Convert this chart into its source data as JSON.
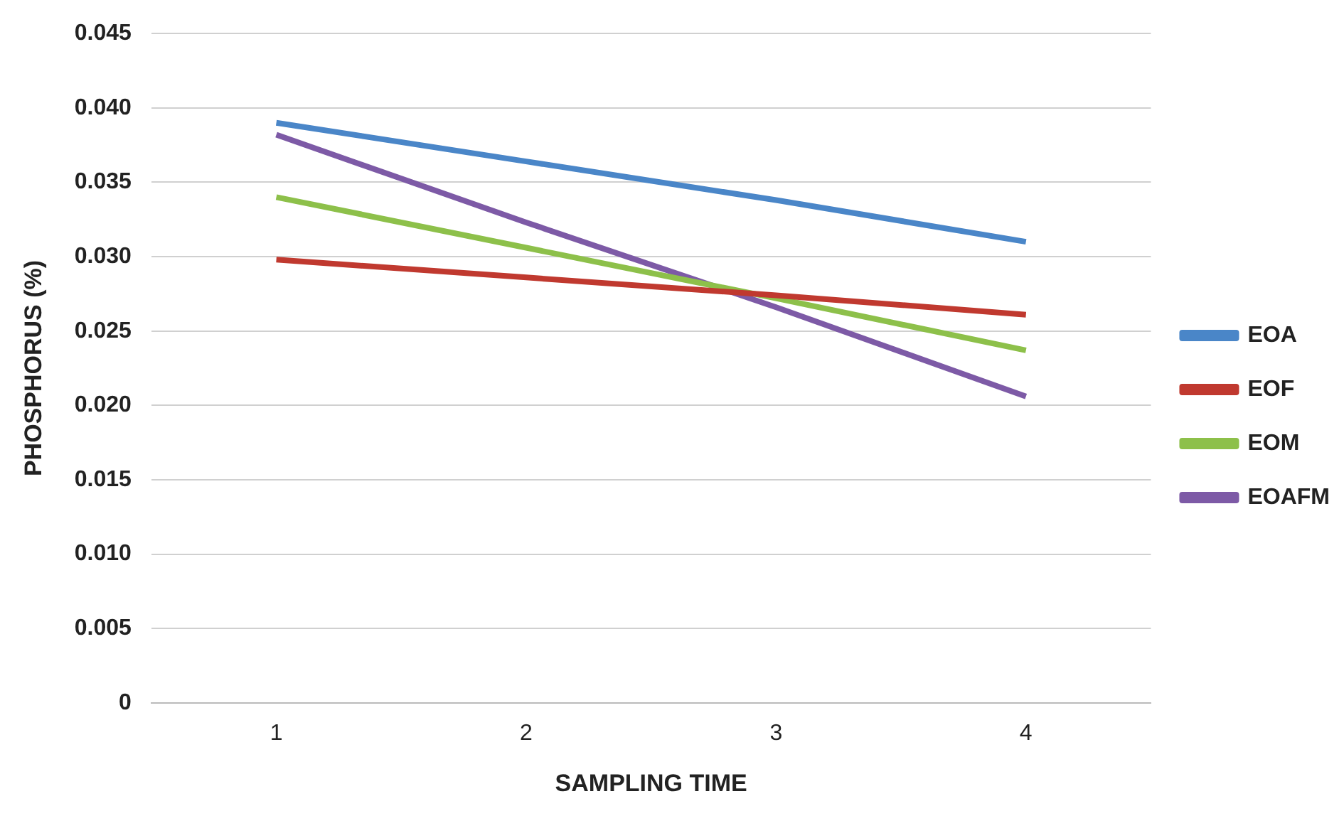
{
  "chart_data": {
    "type": "line",
    "xlabel": "SAMPLING TIME",
    "ylabel": "PHOSPHORUS (%)",
    "categories": [
      "1",
      "2",
      "3",
      "4"
    ],
    "series": [
      {
        "name": "EOA",
        "color": "#4a86c8",
        "values": [
          0.039,
          0.0364,
          0.0338,
          0.031
        ]
      },
      {
        "name": "EOF",
        "color": "#c0392f",
        "values": [
          0.0298,
          0.0286,
          0.0274,
          0.0261
        ]
      },
      {
        "name": "EOM",
        "color": "#8dc04a",
        "values": [
          0.034,
          0.0306,
          0.0272,
          0.0237
        ]
      },
      {
        "name": "EOAFM",
        "color": "#7d5aa6",
        "values": [
          0.0382,
          0.0323,
          0.0266,
          0.0206
        ]
      }
    ],
    "ylim": [
      0,
      0.045
    ],
    "yticks": [
      0,
      0.005,
      {
        "value": 0.01,
        "label": "0.010"
      },
      0.015,
      {
        "value": 0.02,
        "label": "0.020"
      },
      0.025,
      {
        "value": 0.03,
        "label": "0.030"
      },
      0.035,
      {
        "value": 0.04,
        "label": "0.040"
      },
      0.045
    ],
    "grid": "y",
    "legend": "right",
    "marker": "none",
    "line_style": "solid"
  }
}
